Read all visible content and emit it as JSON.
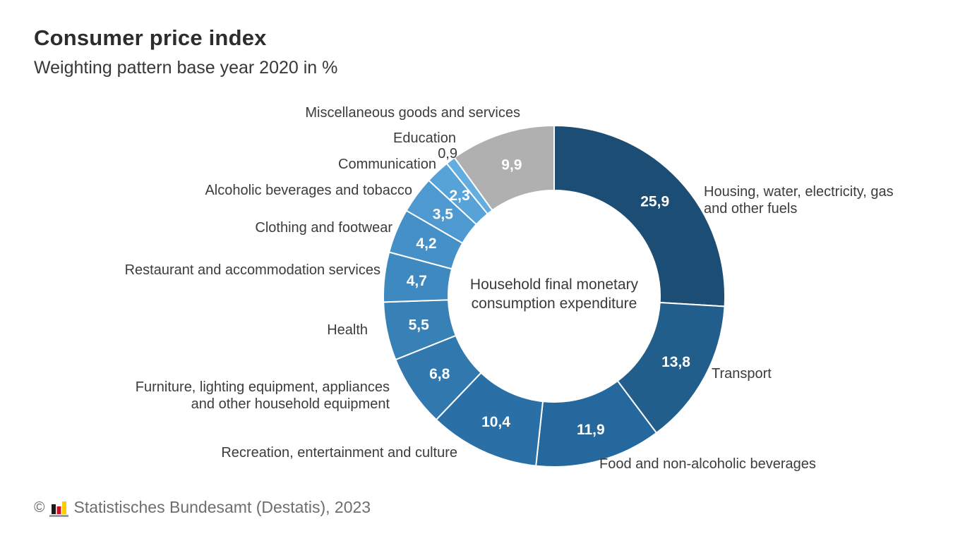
{
  "header": {
    "title": "Consumer price index",
    "subtitle": "Weighting pattern base year 2020 in %"
  },
  "chart_data": {
    "type": "pie",
    "subtype": "donut",
    "title": "Consumer price index",
    "subtitle": "Weighting pattern base year 2020 in %",
    "unit": "%",
    "decimal_separator": ",",
    "start_angle_deg": 0,
    "direction": "clockwise",
    "center_label": "Household final monetary\nconsumption expenditure",
    "segments": [
      {
        "label": "Housing, water, electricity, gas\nand other fuels",
        "value": 25.9,
        "display": "25,9",
        "color": "#1c4d74"
      },
      {
        "label": "Transport",
        "value": 13.8,
        "display": "13,8",
        "color": "#215e8b"
      },
      {
        "label": "Food and non-alcoholic beverages",
        "value": 11.9,
        "display": "11,9",
        "color": "#24689d"
      },
      {
        "label": "Recreation, entertainment and culture",
        "value": 10.4,
        "display": "10,4",
        "color": "#2a70a6"
      },
      {
        "label": "Furniture, lighting equipment, appliances\nand other household equipment",
        "value": 6.8,
        "display": "6,8",
        "color": "#3078ae"
      },
      {
        "label": "Health",
        "value": 5.5,
        "display": "5,5",
        "color": "#3881b7"
      },
      {
        "label": "Restaurant and accommodation services",
        "value": 4.7,
        "display": "4,7",
        "color": "#3e89bf"
      },
      {
        "label": "Clothing and footwear",
        "value": 4.2,
        "display": "4,2",
        "color": "#4590c7"
      },
      {
        "label": "Alcoholic beverages and tobacco",
        "value": 3.5,
        "display": "3,5",
        "color": "#4d99d0"
      },
      {
        "label": "Communication",
        "value": 2.3,
        "display": "2,3",
        "color": "#57a3d8"
      },
      {
        "label": "Education",
        "value": 0.9,
        "display": "0,9",
        "color": "#64ade0"
      },
      {
        "label": "Miscellaneous goods and services",
        "value": 9.9,
        "display": "9,9",
        "color": "#b0b0b0"
      }
    ]
  },
  "footer": {
    "symbol": "©",
    "text": "Statistisches Bundesamt (Destatis), 2023",
    "logo": {
      "name": "destatis-bars-logo",
      "black": "#1a1a1a",
      "red": "#d0112b",
      "yellow": "#ffcc00",
      "base_gray": "#9c9c9c"
    }
  }
}
